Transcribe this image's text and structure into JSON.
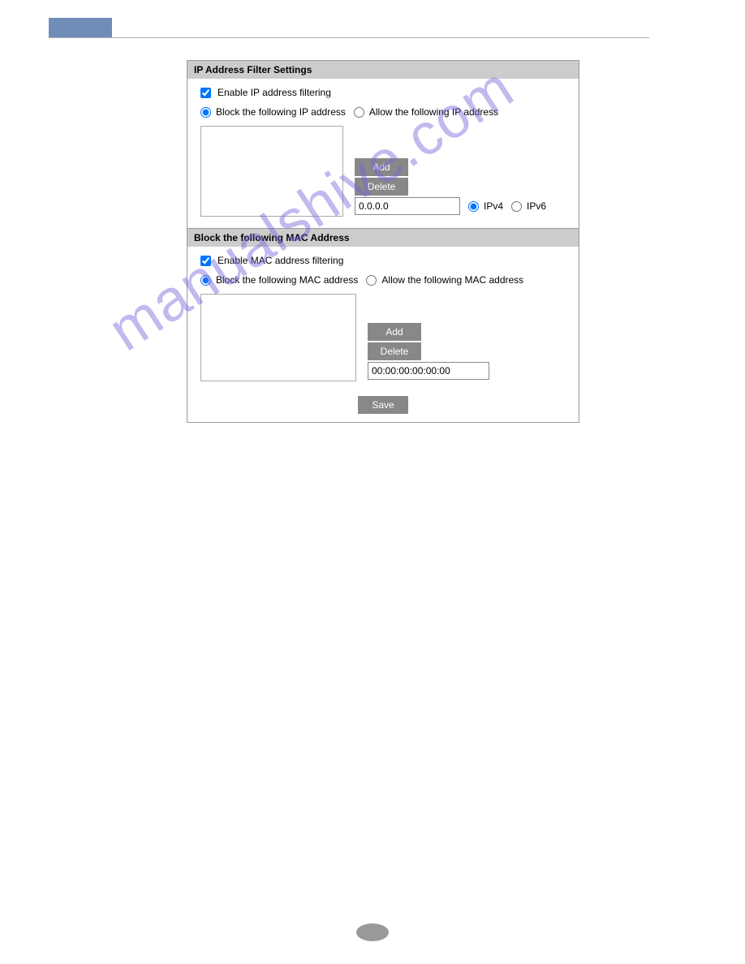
{
  "colors": {
    "header_bar": "#6f8db8",
    "section_header_bg": "#ccc",
    "button_bg": "#888",
    "button_text": "#ffffff",
    "border": "#999",
    "watermark": "rgba(120,100,220,0.45)",
    "footer_oval": "#999"
  },
  "watermark_text": "manualshive.com",
  "ip_section": {
    "title": "IP Address Filter Settings",
    "enable_label": "Enable IP address filtering",
    "enable_checked": true,
    "mode_block_label": "Block the following IP address",
    "mode_allow_label": "Allow the following IP address",
    "mode_selected": "block",
    "add_label": "Add",
    "delete_label": "Delete",
    "ip_value": "0.0.0.0",
    "ipv4_label": "IPv4",
    "ipv6_label": "IPv6",
    "ipver_selected": "ipv4"
  },
  "mac_section": {
    "title": "Block the following MAC Address",
    "enable_label": "Enable MAC address filtering",
    "enable_checked": true,
    "mode_block_label": "Block the following MAC address",
    "mode_allow_label": "Allow the following MAC address",
    "mode_selected": "block",
    "add_label": "Add",
    "delete_label": "Delete",
    "mac_value": "00:00:00:00:00:00"
  },
  "save_label": "Save"
}
